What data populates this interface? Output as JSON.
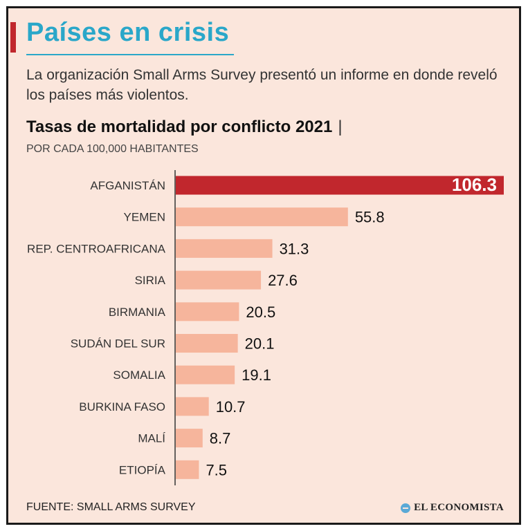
{
  "header": {
    "title": "Países en crisis",
    "intro": "La organización Small Arms Survey presentó un informe en donde reveló los países más violentos."
  },
  "chart_data": {
    "type": "bar",
    "orientation": "horizontal",
    "title": "Tasas de mortalidad por conflicto 2021",
    "title_separator": "|",
    "subtitle": "POR CADA 100,000 HABITANTES",
    "categories": [
      "AFGANISTÁN",
      "YEMEN",
      "REP. CENTROAFRICANA",
      "SIRIA",
      "BIRMANIA",
      "SUDÁN DEL SUR",
      "SOMALIA",
      "BURKINA FASO",
      "MALÍ",
      "ETIOPÍA"
    ],
    "values": [
      106.3,
      55.8,
      31.3,
      27.6,
      20.5,
      20.1,
      19.1,
      10.7,
      8.7,
      7.5
    ],
    "value_labels": [
      "106.3",
      "55.8",
      "31.3",
      "27.6",
      "20.5",
      "20.1",
      "19.1",
      "10.7",
      "8.7",
      "7.5"
    ],
    "highlight_index": 0,
    "colors": {
      "highlight": "#c1272d",
      "bar": "#f6b59c",
      "axis": "#333333"
    },
    "xlim": [
      0,
      106.3
    ],
    "grid": false,
    "legend": "none"
  },
  "footer": {
    "source": "FUENTE: SMALL ARMS SURVEY",
    "brand": "EL ECONOMISTA",
    "brand_icon": "logo-circle-icon"
  }
}
